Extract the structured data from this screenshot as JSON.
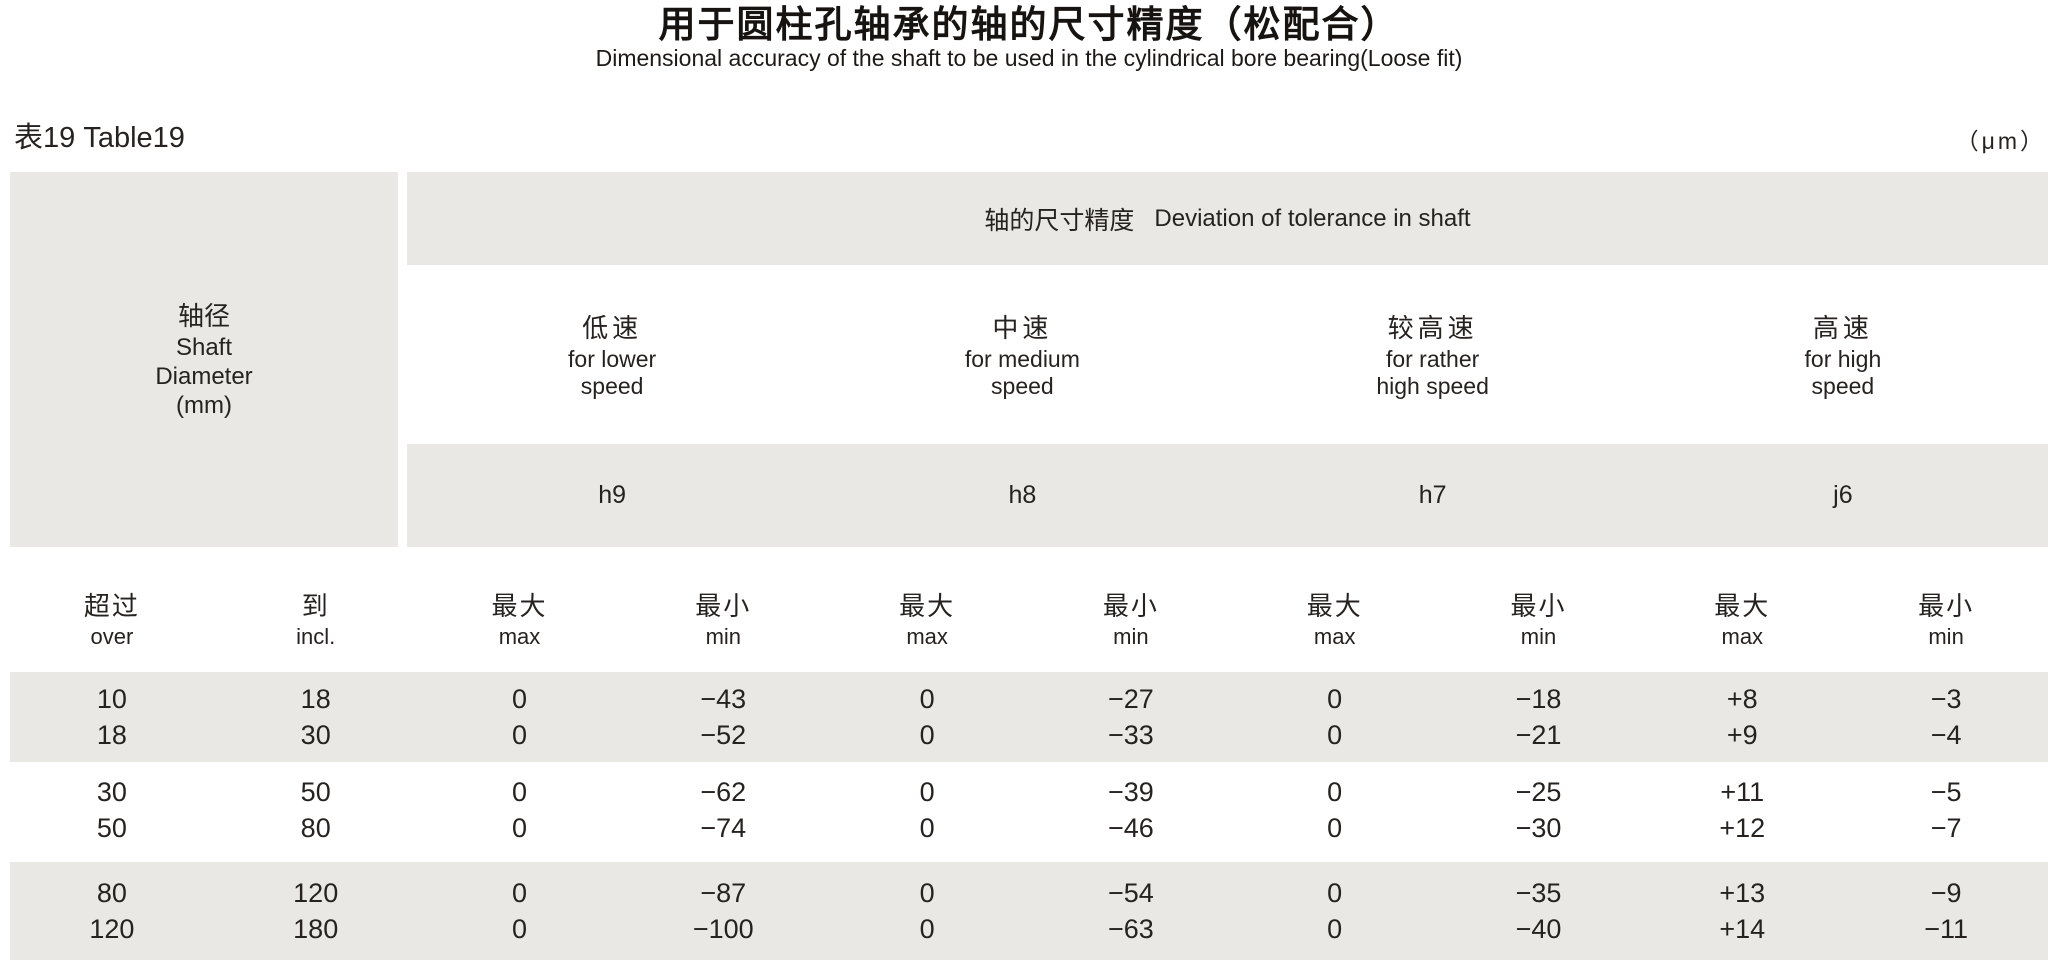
{
  "page": {
    "title_zh": "用于圆柱孔轴承的轴的尺寸精度（松配合）",
    "title_en": "Dimensional accuracy of the shaft to be used in the cylindrical bore bearing(Loose fit)",
    "table_label": "表19 Table19",
    "unit_label": "（μm）"
  },
  "colors": {
    "band_gray": "#e9e8e5",
    "text": "#262220",
    "background": "#ffffff"
  },
  "header": {
    "shaft_diameter": {
      "zh": "轴径",
      "en1": "Shaft",
      "en2": "Diameter",
      "en3": "(mm)"
    },
    "deviation": {
      "zh": "轴的尺寸精度",
      "en": "Deviation of tolerance in shaft"
    },
    "speed_groups": [
      {
        "zh": "低速",
        "en1": "for lower",
        "en2": "speed",
        "tolerance_class": "h9"
      },
      {
        "zh": "中速",
        "en1": "for medium",
        "en2": "speed",
        "tolerance_class": "h8"
      },
      {
        "zh": "较高速",
        "en1": "for rather",
        "en2": "high speed",
        "tolerance_class": "h7"
      },
      {
        "zh": "高速",
        "en1": "for high",
        "en2": "speed",
        "tolerance_class": "j6"
      }
    ],
    "subheaders": [
      {
        "zh": "超过",
        "en": "over"
      },
      {
        "zh": "到",
        "en": "incl."
      },
      {
        "zh": "最大",
        "en": "max"
      },
      {
        "zh": "最小",
        "en": "min"
      },
      {
        "zh": "最大",
        "en": "max"
      },
      {
        "zh": "最小",
        "en": "min"
      },
      {
        "zh": "最大",
        "en": "max"
      },
      {
        "zh": "最小",
        "en": "min"
      },
      {
        "zh": "最大",
        "en": "max"
      },
      {
        "zh": "最小",
        "en": "min"
      }
    ]
  },
  "table": {
    "rows": [
      [
        "10",
        "18",
        "0",
        "−43",
        "0",
        "−27",
        "0",
        "−18",
        "+8",
        "−3"
      ],
      [
        "18",
        "30",
        "0",
        "−52",
        "0",
        "−33",
        "0",
        "−21",
        "+9",
        "−4"
      ],
      [
        "30",
        "50",
        "0",
        "−62",
        "0",
        "−39",
        "0",
        "−25",
        "+11",
        "−5"
      ],
      [
        "50",
        "80",
        "0",
        "−74",
        "0",
        "−46",
        "0",
        "−30",
        "+12",
        "−7"
      ],
      [
        "80",
        "120",
        "0",
        "−87",
        "0",
        "−54",
        "0",
        "−35",
        "+13",
        "−9"
      ],
      [
        "120",
        "180",
        "0",
        "−100",
        "0",
        "−63",
        "0",
        "−40",
        "+14",
        "−11"
      ]
    ]
  }
}
